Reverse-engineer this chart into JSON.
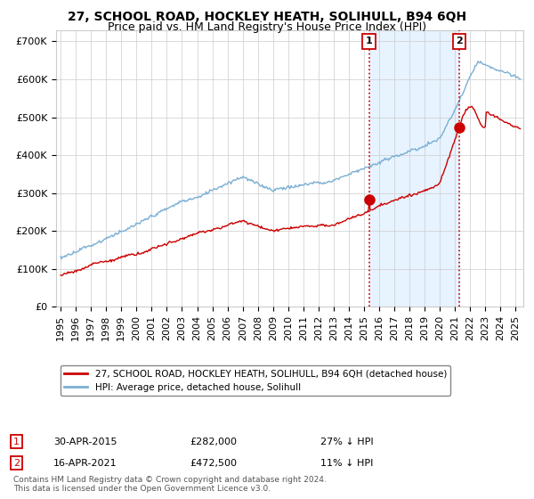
{
  "title": "27, SCHOOL ROAD, HOCKLEY HEATH, SOLIHULL, B94 6QH",
  "subtitle": "Price paid vs. HM Land Registry's House Price Index (HPI)",
  "ylabel_ticks": [
    "£0",
    "£100K",
    "£200K",
    "£300K",
    "£400K",
    "£500K",
    "£600K",
    "£700K"
  ],
  "ytick_values": [
    0,
    100000,
    200000,
    300000,
    400000,
    500000,
    600000,
    700000
  ],
  "ylim": [
    0,
    730000
  ],
  "xlim_start": 1994.7,
  "xlim_end": 2025.5,
  "hpi_color": "#7bafd4",
  "hpi_fill_color": "#ddeeff",
  "price_color": "#cc0000",
  "point1_x": 2015.33,
  "point1_y": 282000,
  "point2_x": 2021.29,
  "point2_y": 472500,
  "vline1_x": 2015.33,
  "vline2_x": 2021.29,
  "legend_label_red": "27, SCHOOL ROAD, HOCKLEY HEATH, SOLIHULL, B94 6QH (detached house)",
  "legend_label_blue": "HPI: Average price, detached house, Solihull",
  "annotation1_num": "1",
  "annotation1_date": "30-APR-2015",
  "annotation1_price": "£282,000",
  "annotation1_hpi": "27% ↓ HPI",
  "annotation2_num": "2",
  "annotation2_date": "16-APR-2021",
  "annotation2_price": "£472,500",
  "annotation2_hpi": "11% ↓ HPI",
  "footer": "Contains HM Land Registry data © Crown copyright and database right 2024.\nThis data is licensed under the Open Government Licence v3.0.",
  "bg_color": "#ffffff",
  "grid_color": "#cccccc",
  "title_fontsize": 10,
  "subtitle_fontsize": 9,
  "tick_fontsize": 8
}
